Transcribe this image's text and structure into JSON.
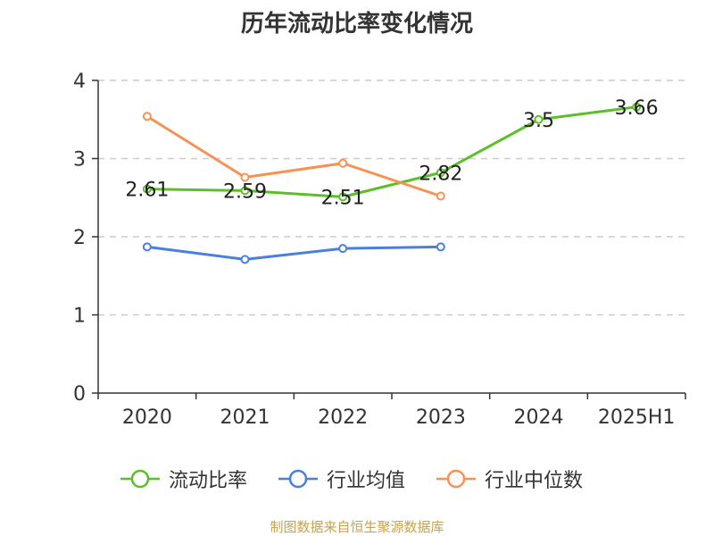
{
  "title": "历年流动比率变化情况",
  "source": "制图数据来自恒生聚源数据库",
  "chart_data": {
    "type": "line",
    "categories": [
      "2020",
      "2021",
      "2022",
      "2023",
      "2024",
      "2025H1"
    ],
    "ylim": [
      0,
      4
    ],
    "yticks": [
      0,
      1,
      2,
      3,
      4
    ],
    "grid": true,
    "legend_position": "bottom",
    "series": [
      {
        "name": "流动比率",
        "color": "#5cbf2a",
        "values": [
          2.61,
          2.59,
          2.51,
          2.82,
          3.5,
          3.66
        ],
        "labels": [
          "2.61",
          "2.59",
          "2.51",
          "2.82",
          "3.5",
          "3.66"
        ]
      },
      {
        "name": "行业均值",
        "color": "#4a7fdc",
        "values": [
          1.87,
          1.71,
          1.85,
          1.87,
          null,
          null
        ]
      },
      {
        "name": "行业中位数",
        "color": "#f79256",
        "values": [
          3.54,
          2.76,
          2.94,
          2.52,
          null,
          null
        ]
      }
    ]
  }
}
